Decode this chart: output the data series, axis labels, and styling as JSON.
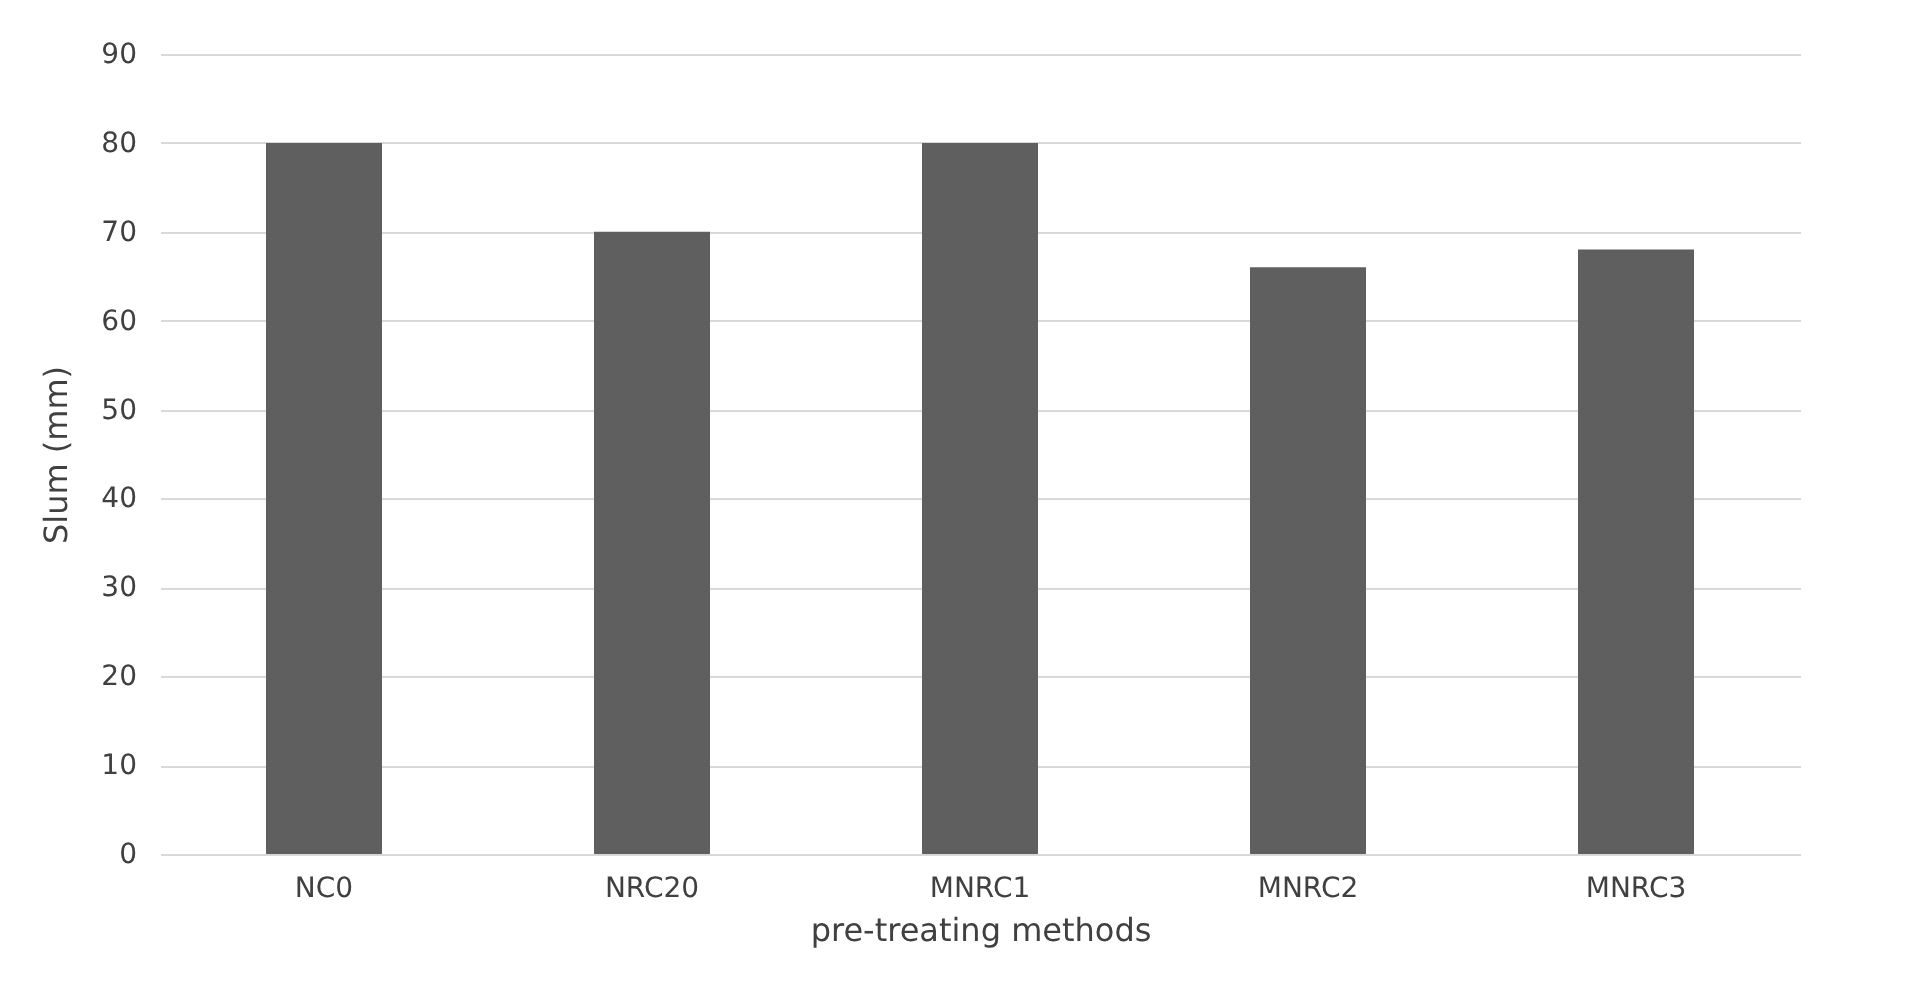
{
  "chart_data": {
    "type": "bar",
    "xlabel": "pre-treating methods",
    "ylabel": "Slum (mm)",
    "categories": [
      "NC0",
      "NRC20",
      "MNRC1",
      "MNRC2",
      "MNRC3"
    ],
    "values": [
      80,
      70,
      80,
      66,
      68
    ],
    "color": "#5f5f5f",
    "ylim": [
      0,
      90
    ],
    "yticks": [
      0,
      10,
      20,
      30,
      40,
      50,
      60,
      70,
      80,
      90
    ],
    "grid": "y"
  }
}
